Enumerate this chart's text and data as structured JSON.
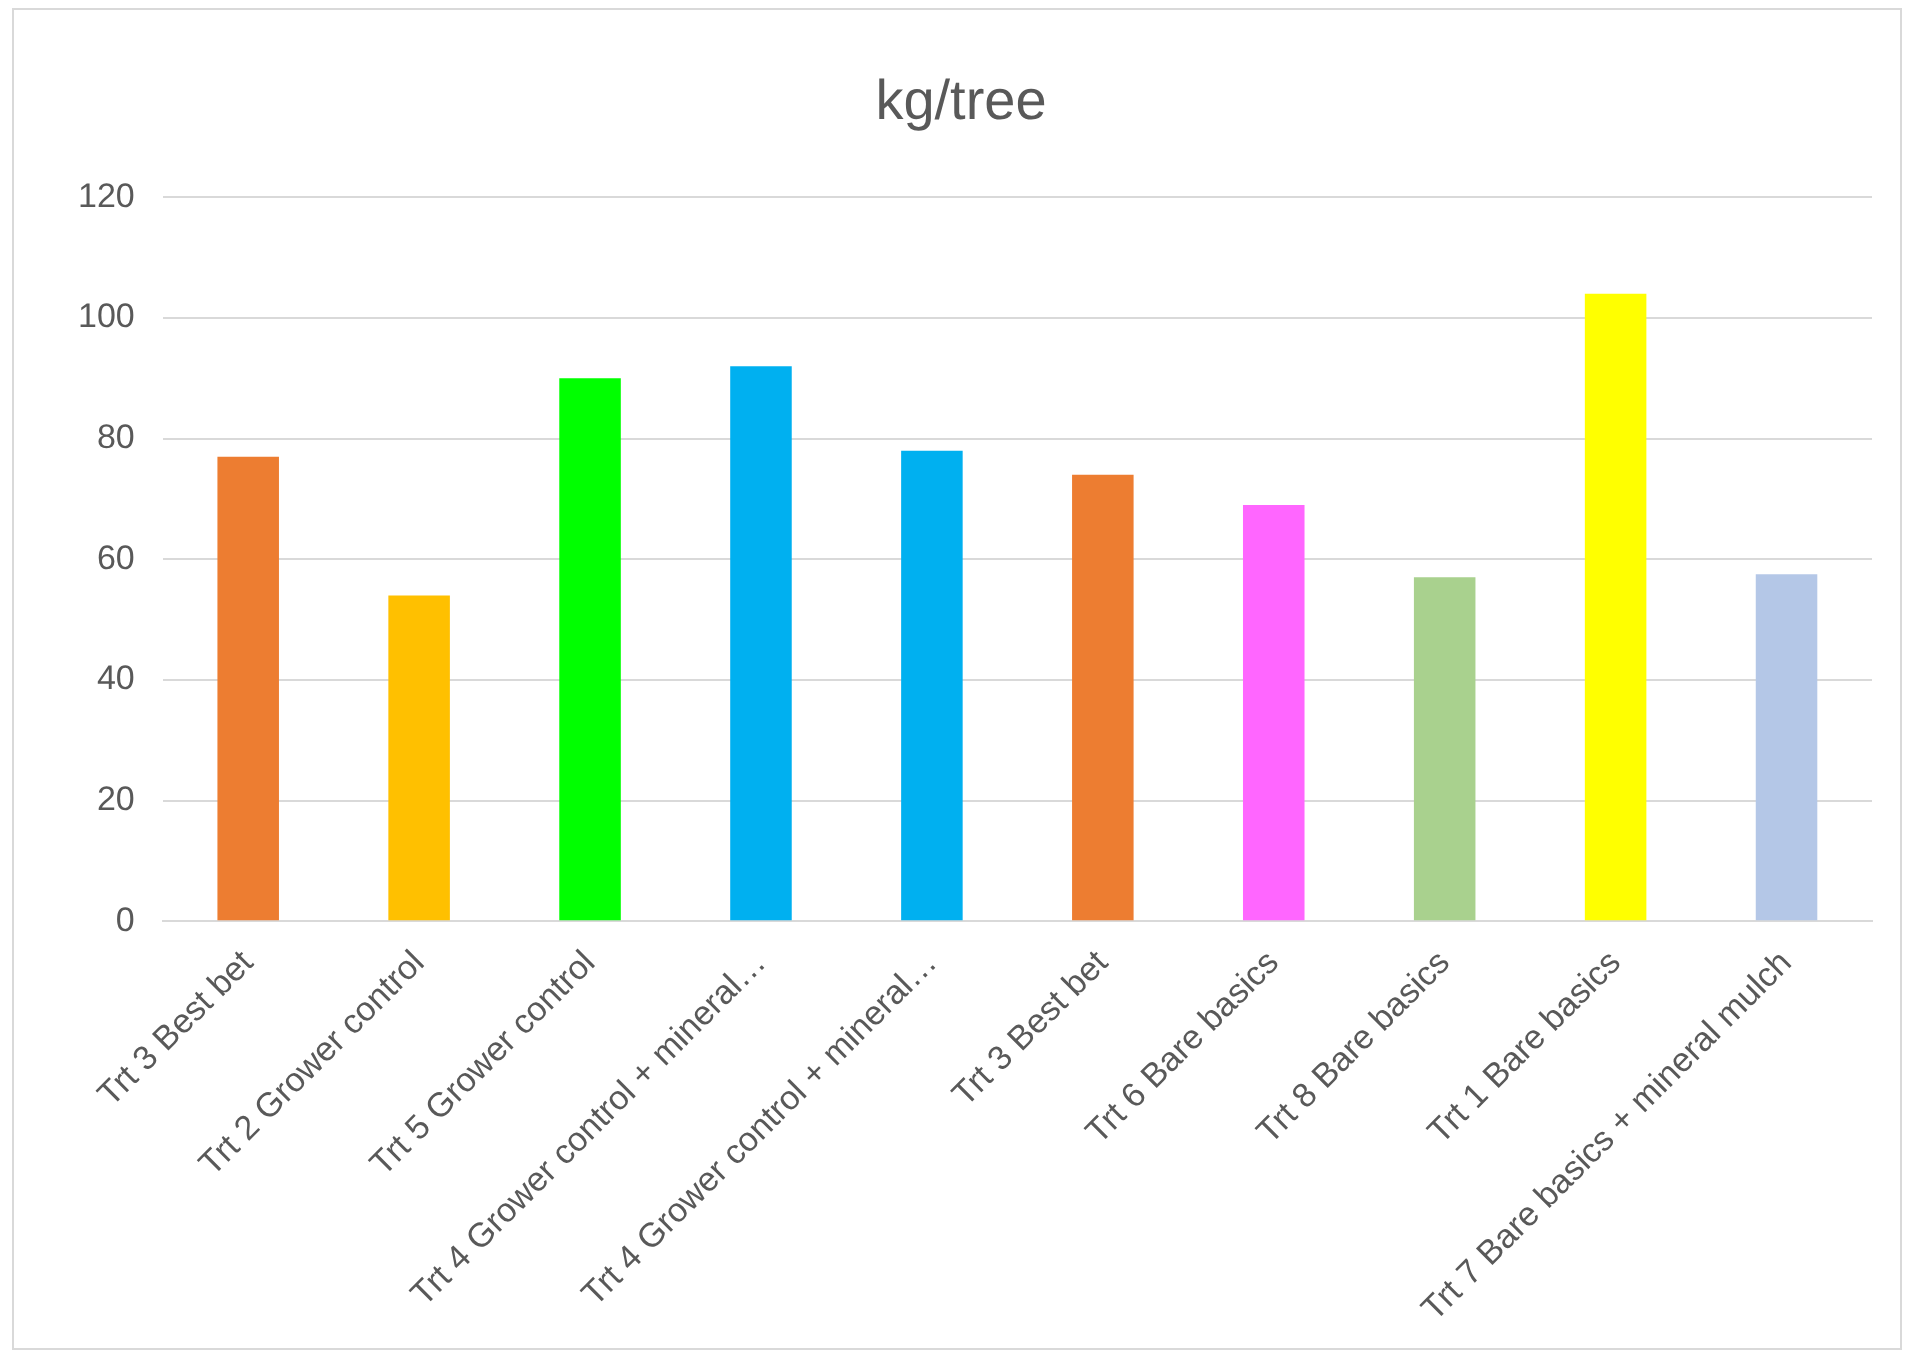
{
  "chart_data": {
    "type": "bar",
    "title": "kg/tree",
    "categories": [
      "Trt 3 Best bet",
      "Trt 2 Grower control",
      "Trt 5 Grower control",
      "Trt 4 Grower control + mineral…",
      "Trt 4 Grower control + mineral…",
      "Trt 3 Best bet",
      "Trt 6 Bare basics",
      "Trt 8 Bare basics",
      "Trt 1 Bare basics",
      "Trt 7 Bare basics + mineral mulch"
    ],
    "values": [
      77,
      54,
      90,
      92,
      78,
      74,
      69,
      57,
      104,
      57.5
    ],
    "colors": [
      "#ed7d31",
      "#ffc000",
      "#00ff00",
      "#00b0f0",
      "#00b0f0",
      "#ed7d31",
      "#ff66ff",
      "#a9d18e",
      "#ffff00",
      "#b4c7e7"
    ],
    "ylim": [
      0,
      120
    ],
    "yticks": [
      0,
      20,
      40,
      60,
      80,
      100,
      120
    ],
    "grid": "y",
    "legend": false
  }
}
